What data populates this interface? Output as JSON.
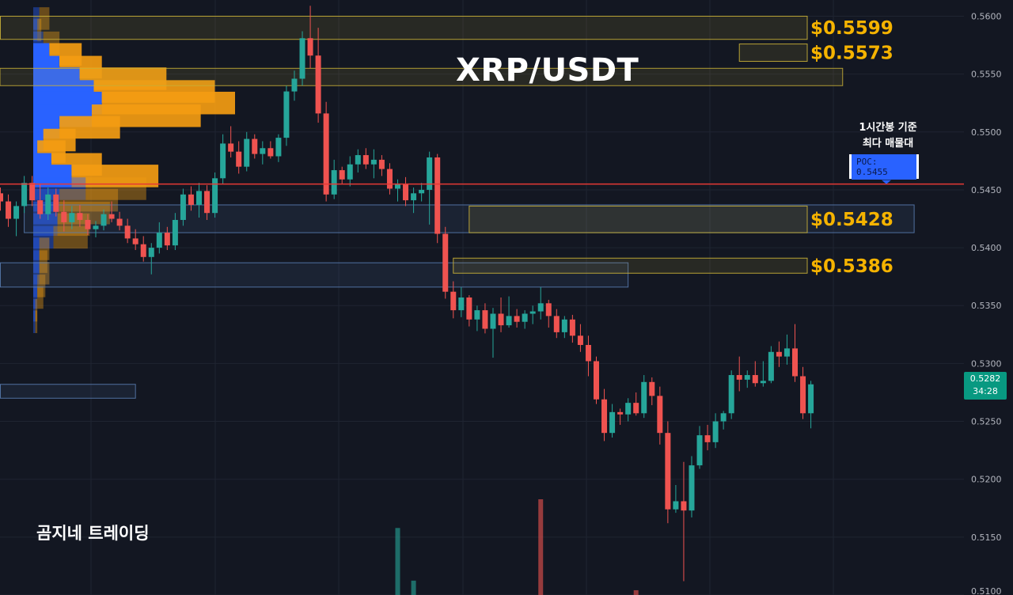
{
  "chart_data": {
    "type": "candlestick",
    "title": "XRP/USDT",
    "watermark": "곰지네 트레이딩",
    "y_axis": {
      "ylim": [
        0.51,
        0.5614
      ],
      "ticks": [
        "0.5600",
        "0.5550",
        "0.5500",
        "0.5450",
        "0.5400",
        "0.5350",
        "0.5300",
        "0.5250",
        "0.5200",
        "0.5150",
        "0.5100"
      ],
      "position": "right"
    },
    "grid": true,
    "poc": {
      "value": 0.5455,
      "label": "POC: 0.5455",
      "note_line1": "1시간봉 기준",
      "note_line2": "최다 매물대",
      "color": "#e53935"
    },
    "current_price": {
      "value": "0.5282",
      "countdown": "34:28",
      "color": "#089981"
    },
    "levels": [
      {
        "label": "$0.5599",
        "top": 0.56,
        "bottom": 0.558,
        "start_index": 0
      },
      {
        "label": "$0.5573",
        "top": 0.5576,
        "bottom": 0.5561,
        "start_index": 93
      },
      {
        "label": "$0.5428",
        "top": 0.5436,
        "bottom": 0.5413,
        "start_index": 59
      },
      {
        "label": "$0.5386",
        "top": 0.5391,
        "bottom": 0.5378,
        "start_index": 57
      }
    ],
    "unlabeled_zones": [
      {
        "top": 0.5555,
        "bottom": 0.554,
        "end_index": 106,
        "color": "#c9b037"
      },
      {
        "top": 0.5437,
        "bottom": 0.5413,
        "start_index": 3,
        "end_index": 115,
        "color": "#5b7fb5"
      },
      {
        "top": 0.5387,
        "bottom": 0.5366,
        "start_index": 0,
        "end_index": 79,
        "color": "#5b7fb5"
      },
      {
        "top": 0.5282,
        "bottom": 0.527,
        "start_index": 0,
        "end_index": 17,
        "color": "#5b7fb5"
      }
    ],
    "level_color": "#f5b300",
    "up_color": "#26a69a",
    "down_color": "#ef5350",
    "volume_profile": {
      "buy_color": "#2962ff",
      "sell_color": "#f39c12",
      "rows": [
        {
          "price": 0.5598,
          "buy": 3,
          "sell": 5,
          "in_value_area": false
        },
        {
          "price": 0.5588,
          "buy": 2,
          "sell": 2,
          "in_value_area": false
        },
        {
          "price": 0.5577,
          "buy": 5,
          "sell": 8,
          "in_value_area": false
        },
        {
          "price": 0.5567,
          "buy": 8,
          "sell": 16,
          "in_value_area": true
        },
        {
          "price": 0.5556,
          "buy": 13,
          "sell": 21,
          "in_value_area": true
        },
        {
          "price": 0.5546,
          "buy": 23,
          "sell": 43,
          "in_value_area": true
        },
        {
          "price": 0.5535,
          "buy": 30,
          "sell": 60,
          "in_value_area": true
        },
        {
          "price": 0.5525,
          "buy": 34,
          "sell": 66,
          "in_value_area": true
        },
        {
          "price": 0.5514,
          "buy": 29,
          "sell": 54,
          "in_value_area": true
        },
        {
          "price": 0.5504,
          "buy": 13,
          "sell": 30,
          "in_value_area": true
        },
        {
          "price": 0.5493,
          "buy": 5,
          "sell": 16,
          "in_value_area": true
        },
        {
          "price": 0.5483,
          "buy": 2,
          "sell": 14,
          "in_value_area": true
        },
        {
          "price": 0.5472,
          "buy": 9,
          "sell": 25,
          "in_value_area": true
        },
        {
          "price": 0.5462,
          "buy": 19,
          "sell": 43,
          "in_value_area": true
        },
        {
          "price": 0.5451,
          "buy": 26,
          "sell": 30,
          "in_value_area": false
        },
        {
          "price": 0.5441,
          "buy": 13,
          "sell": 29,
          "in_value_area": false
        },
        {
          "price": 0.543,
          "buy": 12,
          "sell": 26,
          "in_value_area": false
        },
        {
          "price": 0.542,
          "buy": 12,
          "sell": 16,
          "in_value_area": false
        },
        {
          "price": 0.5409,
          "buy": 10,
          "sell": 17,
          "in_value_area": false
        },
        {
          "price": 0.5399,
          "buy": 3,
          "sell": 5,
          "in_value_area": false
        },
        {
          "price": 0.5388,
          "buy": 3,
          "sell": 4,
          "in_value_area": false
        },
        {
          "price": 0.5378,
          "buy": 3,
          "sell": 5,
          "in_value_area": false
        },
        {
          "price": 0.5367,
          "buy": 2,
          "sell": 4,
          "in_value_area": false
        },
        {
          "price": 0.5357,
          "buy": 2,
          "sell": 3,
          "in_value_area": false
        },
        {
          "price": 0.5346,
          "buy": 1,
          "sell": 1,
          "in_value_area": false
        },
        {
          "price": 0.5336,
          "buy": 1,
          "sell": 1,
          "in_value_area": false
        }
      ]
    },
    "candles": [
      [
        0.5447,
        0.5452,
        0.5432,
        0.544
      ],
      [
        0.544,
        0.5446,
        0.5418,
        0.5425
      ],
      [
        0.5425,
        0.544,
        0.541,
        0.5436
      ],
      [
        0.5436,
        0.5462,
        0.543,
        0.5456
      ],
      [
        0.5456,
        0.5462,
        0.5436,
        0.5441
      ],
      [
        0.5441,
        0.5455,
        0.5425,
        0.5429
      ],
      [
        0.5429,
        0.5452,
        0.5424,
        0.5446
      ],
      [
        0.5446,
        0.5451,
        0.5427,
        0.5431
      ],
      [
        0.5431,
        0.5441,
        0.5414,
        0.5422
      ],
      [
        0.5422,
        0.5436,
        0.5416,
        0.543
      ],
      [
        0.543,
        0.5437,
        0.5418,
        0.5424
      ],
      [
        0.5424,
        0.5429,
        0.5411,
        0.5416
      ],
      [
        0.5416,
        0.5423,
        0.5409,
        0.5419
      ],
      [
        0.5419,
        0.5433,
        0.5415,
        0.5429
      ],
      [
        0.5429,
        0.544,
        0.5422,
        0.5425
      ],
      [
        0.5425,
        0.5431,
        0.5415,
        0.5419
      ],
      [
        0.5419,
        0.5425,
        0.5404,
        0.5408
      ],
      [
        0.5408,
        0.5416,
        0.5398,
        0.5403
      ],
      [
        0.5403,
        0.541,
        0.5388,
        0.5392
      ],
      [
        0.5392,
        0.5404,
        0.5377,
        0.54
      ],
      [
        0.54,
        0.5422,
        0.5395,
        0.5413
      ],
      [
        0.5413,
        0.5418,
        0.5398,
        0.5402
      ],
      [
        0.5402,
        0.543,
        0.5398,
        0.5424
      ],
      [
        0.5424,
        0.5451,
        0.5419,
        0.5446
      ],
      [
        0.5446,
        0.5453,
        0.5432,
        0.5437
      ],
      [
        0.5437,
        0.5456,
        0.5426,
        0.5449
      ],
      [
        0.5449,
        0.5454,
        0.5424,
        0.543
      ],
      [
        0.543,
        0.5465,
        0.5426,
        0.546
      ],
      [
        0.546,
        0.5498,
        0.5455,
        0.549
      ],
      [
        0.549,
        0.5505,
        0.5478,
        0.5483
      ],
      [
        0.5483,
        0.5492,
        0.5464,
        0.547
      ],
      [
        0.547,
        0.55,
        0.5466,
        0.5494
      ],
      [
        0.5494,
        0.5498,
        0.5477,
        0.5481
      ],
      [
        0.5481,
        0.5492,
        0.5472,
        0.5486
      ],
      [
        0.5486,
        0.5492,
        0.5477,
        0.5479
      ],
      [
        0.5479,
        0.5498,
        0.5474,
        0.5495
      ],
      [
        0.5495,
        0.554,
        0.5488,
        0.5535
      ],
      [
        0.5535,
        0.5553,
        0.5527,
        0.5546
      ],
      [
        0.5546,
        0.5587,
        0.554,
        0.5581
      ],
      [
        0.5581,
        0.5609,
        0.5555,
        0.5566
      ],
      [
        0.5566,
        0.559,
        0.5508,
        0.5516
      ],
      [
        0.5516,
        0.5526,
        0.544,
        0.5446
      ],
      [
        0.5446,
        0.5476,
        0.5442,
        0.5467
      ],
      [
        0.5467,
        0.547,
        0.5455,
        0.5459
      ],
      [
        0.5459,
        0.5479,
        0.5453,
        0.5472
      ],
      [
        0.5472,
        0.5485,
        0.5465,
        0.548
      ],
      [
        0.548,
        0.5486,
        0.5468,
        0.5472
      ],
      [
        0.5472,
        0.5485,
        0.546,
        0.5476
      ],
      [
        0.5476,
        0.548,
        0.5462,
        0.5468
      ],
      [
        0.5468,
        0.5473,
        0.5446,
        0.5451
      ],
      [
        0.5451,
        0.5459,
        0.544,
        0.5455
      ],
      [
        0.5455,
        0.5461,
        0.5436,
        0.5441
      ],
      [
        0.5441,
        0.5452,
        0.543,
        0.5447
      ],
      [
        0.5447,
        0.5456,
        0.544,
        0.545
      ],
      [
        0.545,
        0.5483,
        0.542,
        0.5478
      ],
      [
        0.5478,
        0.5481,
        0.5404,
        0.5412
      ],
      [
        0.5412,
        0.5418,
        0.5356,
        0.5362
      ],
      [
        0.5362,
        0.5371,
        0.5339,
        0.5346
      ],
      [
        0.5346,
        0.5366,
        0.534,
        0.5357
      ],
      [
        0.5357,
        0.5359,
        0.5332,
        0.5338
      ],
      [
        0.5338,
        0.535,
        0.5328,
        0.5346
      ],
      [
        0.5346,
        0.5352,
        0.5326,
        0.533
      ],
      [
        0.533,
        0.5348,
        0.5305,
        0.5343
      ],
      [
        0.5343,
        0.5357,
        0.5327,
        0.5333
      ],
      [
        0.5333,
        0.5358,
        0.5331,
        0.5341
      ],
      [
        0.5341,
        0.5347,
        0.5331,
        0.5336
      ],
      [
        0.5336,
        0.5346,
        0.533,
        0.5343
      ],
      [
        0.5343,
        0.535,
        0.5334,
        0.5345
      ],
      [
        0.5345,
        0.5366,
        0.5338,
        0.5352
      ],
      [
        0.5352,
        0.5355,
        0.5331,
        0.5341
      ],
      [
        0.5341,
        0.5347,
        0.5322,
        0.5327
      ],
      [
        0.5327,
        0.5341,
        0.5322,
        0.5338
      ],
      [
        0.5338,
        0.5342,
        0.5318,
        0.5324
      ],
      [
        0.5324,
        0.5334,
        0.531,
        0.5316
      ],
      [
        0.5316,
        0.5324,
        0.5289,
        0.5302
      ],
      [
        0.5302,
        0.5306,
        0.5265,
        0.5269
      ],
      [
        0.5269,
        0.5278,
        0.5233,
        0.524
      ],
      [
        0.524,
        0.5265,
        0.5236,
        0.5258
      ],
      [
        0.5258,
        0.5261,
        0.5247,
        0.5256
      ],
      [
        0.5256,
        0.527,
        0.525,
        0.5266
      ],
      [
        0.5266,
        0.5275,
        0.5255,
        0.5257
      ],
      [
        0.5257,
        0.529,
        0.5253,
        0.5284
      ],
      [
        0.5284,
        0.5288,
        0.5264,
        0.5272
      ],
      [
        0.5272,
        0.528,
        0.523,
        0.524
      ],
      [
        0.524,
        0.525,
        0.5162,
        0.5174
      ],
      [
        0.5174,
        0.5195,
        0.5171,
        0.5181
      ],
      [
        0.5181,
        0.5215,
        0.5112,
        0.5173
      ],
      [
        0.5173,
        0.522,
        0.5167,
        0.5212
      ],
      [
        0.5212,
        0.5246,
        0.5209,
        0.5238
      ],
      [
        0.5238,
        0.5247,
        0.5225,
        0.5232
      ],
      [
        0.5232,
        0.5257,
        0.5227,
        0.525
      ],
      [
        0.525,
        0.5259,
        0.5243,
        0.5257
      ],
      [
        0.5257,
        0.5294,
        0.5252,
        0.529
      ],
      [
        0.529,
        0.5306,
        0.5276,
        0.5286
      ],
      [
        0.5286,
        0.5294,
        0.5279,
        0.529
      ],
      [
        0.529,
        0.5302,
        0.528,
        0.5283
      ],
      [
        0.5283,
        0.5302,
        0.528,
        0.5285
      ],
      [
        0.5285,
        0.5315,
        0.5283,
        0.531
      ],
      [
        0.531,
        0.5319,
        0.5297,
        0.5306
      ],
      [
        0.5306,
        0.5325,
        0.5299,
        0.5313
      ],
      [
        0.5313,
        0.5334,
        0.5284,
        0.5289
      ],
      [
        0.5289,
        0.5297,
        0.5252,
        0.5257
      ],
      [
        0.5257,
        0.5285,
        0.5244,
        0.5282
      ]
    ],
    "volume_bars": [
      {
        "index": 50,
        "value": 0.7,
        "direction": "up"
      },
      {
        "index": 52,
        "value": 0.15,
        "direction": "up"
      },
      {
        "index": 68,
        "value": 1.0,
        "direction": "down"
      },
      {
        "index": 80,
        "value": 0.05,
        "direction": "down"
      }
    ]
  }
}
